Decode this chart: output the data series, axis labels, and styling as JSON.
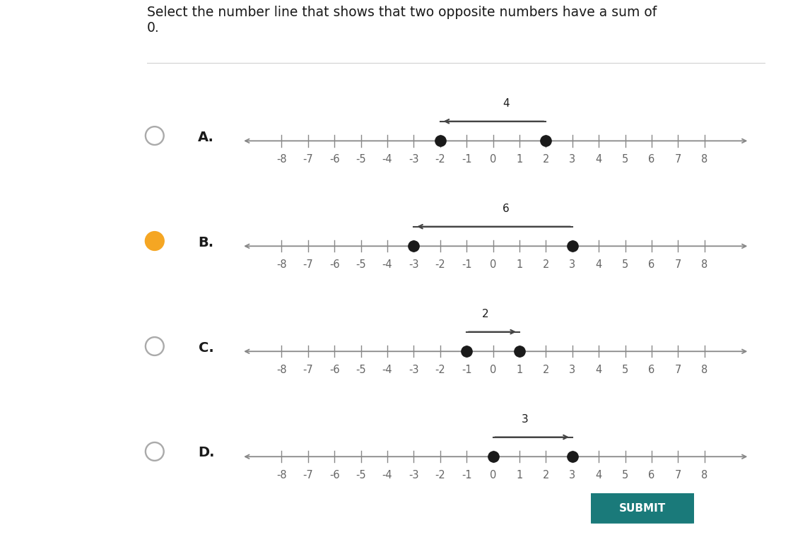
{
  "title": "Select the number line that shows that two opposite numbers have a sum of\n0.",
  "options": [
    "A.",
    "B.",
    "C.",
    "D."
  ],
  "number_line_range": [
    -8,
    8
  ],
  "highlighted_points": [
    [
      -2,
      2
    ],
    [
      -3,
      3
    ],
    [
      -1,
      1
    ],
    [
      0,
      3
    ]
  ],
  "bracket_labels": [
    "4",
    "6",
    "2",
    "3"
  ],
  "bracket_directions": [
    "left",
    "left",
    "right",
    "right"
  ],
  "selected_option": 1,
  "radio_color_selected": "#f5a623",
  "dot_color": "#1a1a1a",
  "line_color": "#888888",
  "arrow_color": "#444444",
  "background_color": "#ffffff",
  "submit_button_color": "#1a7a7a",
  "submit_text": "SUBMIT",
  "title_fontsize": 13.5,
  "option_fontsize": 14,
  "tick_label_fontsize": 10.5,
  "nl_xlim": [
    -9.8,
    10.0
  ]
}
